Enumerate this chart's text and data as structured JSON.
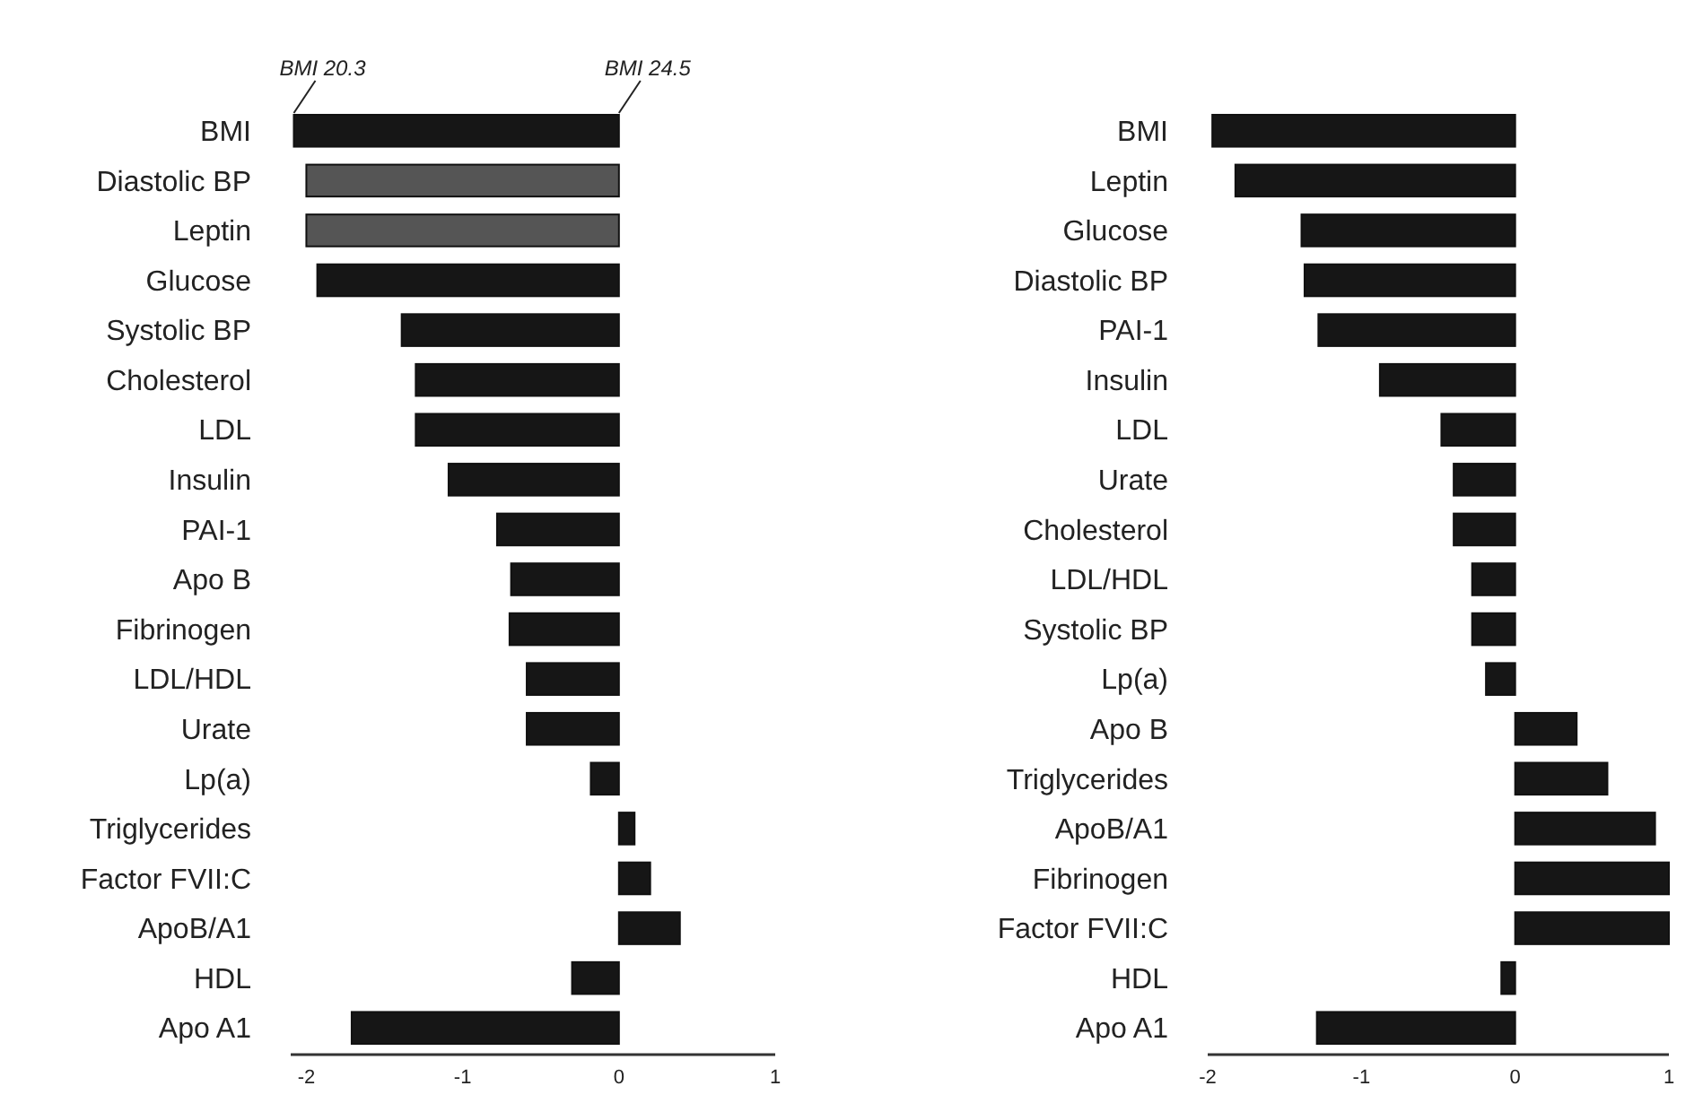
{
  "chart_data": [
    {
      "type": "bar",
      "orientation": "horizontal",
      "categories": [
        "BMI",
        "Diastolic BP",
        "Leptin",
        "Glucose",
        "Systolic BP",
        "Cholesterol",
        "LDL",
        "Insulin",
        "PAI-1",
        "Apo B",
        "Fibrinogen",
        "LDL/HDL",
        "Urate",
        "Lp(a)",
        "Triglycerides",
        "Factor FVII:C",
        "ApoB/A1",
        "HDL",
        "Apo A1"
      ],
      "values": [
        -2.08,
        -2.0,
        -2.0,
        -1.93,
        -1.39,
        -1.3,
        -1.3,
        -1.09,
        -0.78,
        -0.69,
        -0.7,
        -0.59,
        -0.59,
        -0.18,
        0.1,
        0.2,
        0.39,
        -0.3,
        -1.71
      ],
      "colors": [
        "#161616",
        "#555555",
        "#555555",
        "#161616",
        "#161616",
        "#161616",
        "#161616",
        "#161616",
        "#161616",
        "#161616",
        "#161616",
        "#161616",
        "#161616",
        "#161616",
        "#161616",
        "#161616",
        "#161616",
        "#161616",
        "#161616"
      ],
      "xlim": [
        -2.1,
        1
      ],
      "xticks": [
        -2,
        -1,
        0,
        1
      ],
      "annotations": [
        {
          "text": "BMI 20.3",
          "x": -2.08,
          "y": "BMI"
        },
        {
          "text": "BMI 24.5",
          "x": 0,
          "y": "BMI"
        }
      ]
    },
    {
      "type": "bar",
      "orientation": "horizontal",
      "categories": [
        "BMI",
        "Leptin",
        "Glucose",
        "Diastolic BP",
        "PAI-1",
        "Insulin",
        "LDL",
        "Urate",
        "Cholesterol",
        "LDL/HDL",
        "Systolic BP",
        "Lp(a)",
        "Apo B",
        "Triglycerides",
        "ApoB/A1",
        "Fibrinogen",
        "Factor FVII:C",
        "HDL",
        "Apo A1"
      ],
      "values": [
        -1.97,
        -1.82,
        -1.39,
        -1.37,
        -1.28,
        -0.88,
        -0.48,
        -0.4,
        -0.4,
        -0.28,
        -0.28,
        -0.19,
        0.4,
        0.6,
        0.91,
        1.0,
        1.0,
        -0.09,
        -1.29
      ],
      "color": "#161616",
      "xlim": [
        -2,
        1
      ],
      "xticks": [
        -2,
        -1,
        0,
        1
      ]
    }
  ]
}
